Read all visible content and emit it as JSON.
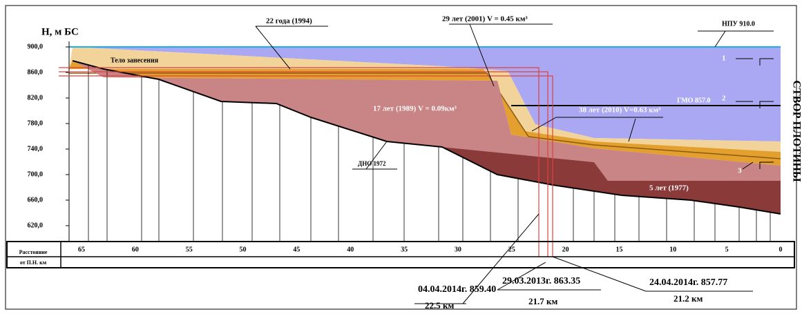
{
  "axis_title": "Н, м БС",
  "y_tick_labels": [
    "900,0",
    "860,0",
    "820,0",
    "780,0",
    "740,0",
    "700,0",
    "660,0",
    "620,0"
  ],
  "distance_row_label": [
    "Расстояние",
    "от П.Н. км"
  ],
  "distance_labels": [
    "65",
    "60",
    "55",
    "50",
    "45",
    "40",
    "35",
    "30",
    "25",
    "20",
    "15",
    "10",
    "5",
    "0"
  ],
  "annotations": {
    "layer_1994": "22 года (1994)",
    "layer_2001": "29 лет (2001) V = 0.45 км³",
    "npu": "НПУ 910.0",
    "body": "Тело занесения",
    "gmo": "ГМО 857.0",
    "layer_1989": "17 лет (1989)  V = 0.09км³",
    "layer_2010": "38 лет (2010) V=0.63 км³",
    "bed_1972": "ДНО 1972",
    "layer_1977": "5 лет (1977)",
    "marker_1": "1",
    "marker_2": "2",
    "marker_3": "3",
    "dam": "СТВОР ПЛОТИНЫ"
  },
  "measurements": [
    {
      "date": "04.04.2014г. 859.40",
      "distance": "22.5 км"
    },
    {
      "date": "29.03.2013г. 863.35",
      "distance": "21.7 км"
    },
    {
      "date": "24.04.2014г. 857.77",
      "distance": "21.2 км"
    }
  ]
}
